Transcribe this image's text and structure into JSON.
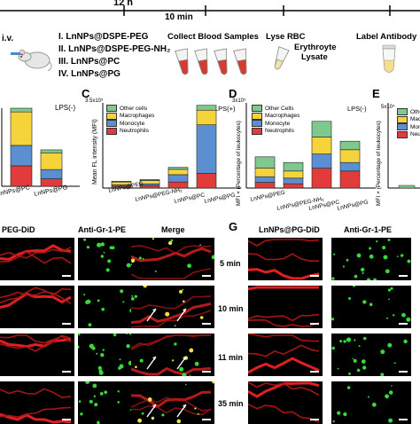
{
  "timeline": {
    "t1": "12 h",
    "t2": "10 min"
  },
  "protocol": {
    "route": "i.v.",
    "groups": [
      "I. LnNPs@DSPE-PEG",
      "II. LnNPs@DSPE-PEG-NH₂",
      "III. LnNPs@PC",
      "IV. LnNPs@PG"
    ],
    "step_collect": "Collect Blood Samples",
    "step_lyse": "Lyse RBC",
    "lysate_label": "Erythroyte\nLysate",
    "step_label": "Label Antibody"
  },
  "colors": {
    "other": "#7fc98f",
    "macrophages": "#f5d33b",
    "monocyte": "#5b8fd1",
    "neutrophils": "#e23b3b"
  },
  "panels": {
    "C": "C",
    "D": "D",
    "E": "E",
    "G": "G"
  },
  "charts": {
    "B": {
      "tag": "LPS(-)",
      "categories": [
        "LnNPs@PC",
        "LnNPs@PG"
      ]
    },
    "C": {
      "tag": "LPS(+)",
      "ylabel": "Mean FL intensity (MFI)",
      "ytick_top": "3.5x10⁵",
      "categories": [
        "LnNPs@PEG",
        "LnNPs@PEG-NH₂",
        "LnNPs@PC",
        "LnNPs@PG"
      ],
      "legend": [
        "Other cells",
        "Macrophages",
        "Monocyte",
        "Neutrophils"
      ]
    },
    "D": {
      "tag": "LPS(-)",
      "ylabel": "MFI × (Percentage of leukocytes)",
      "ytick_top": "3x10⁵",
      "categories": [
        "LnNPs@PEG",
        "LnNPs@PEG-NH₂",
        "LnNPs@PC",
        "LnNPs@PG"
      ],
      "legend": [
        "Other Cells",
        "Macrophages",
        "Monocyte",
        "Neutrophils"
      ]
    },
    "E": {
      "ylabel": "MFI × (Percentage of leukocytes)",
      "ytick_top": "5x10⁴",
      "legend": [
        "Othe",
        "Macr",
        "Mono",
        "Neutr"
      ]
    }
  },
  "chart_data": [
    {
      "type": "bar",
      "panel": "C",
      "categories": [
        "LnNPs@PEG",
        "LnNPs@PEG-NH₂",
        "LnNPs@PC",
        "LnNPs@PG"
      ],
      "series": [
        {
          "name": "Neutrophils",
          "values": [
            7000,
            9000,
            25000,
            60000
          ]
        },
        {
          "name": "Monocyte",
          "values": [
            6000,
            8000,
            30000,
            200000
          ]
        },
        {
          "name": "Macrophages",
          "values": [
            12000,
            14000,
            22000,
            60000
          ]
        },
        {
          "name": "Other cells",
          "values": [
            3000,
            4000,
            8000,
            20000
          ]
        }
      ],
      "ylim": [
        0,
        350000
      ]
    },
    {
      "type": "bar",
      "panel": "D",
      "categories": [
        "LnNPs@PEG",
        "LnNPs@PEG-NH₂",
        "LnNPs@PC",
        "LnNPs@PG"
      ],
      "series": [
        {
          "name": "Neutrophils",
          "values": [
            20000,
            15000,
            70000,
            60000
          ]
        },
        {
          "name": "Monocyte",
          "values": [
            20000,
            20000,
            50000,
            30000
          ]
        },
        {
          "name": "Macrophages",
          "values": [
            30000,
            25000,
            60000,
            45000
          ]
        },
        {
          "name": "Other Cells",
          "values": [
            40000,
            30000,
            55000,
            30000
          ]
        }
      ],
      "ylim": [
        0,
        300000
      ]
    },
    {
      "type": "bar",
      "panel": "B",
      "categories": [
        "LnNPs@PC",
        "LnNPs@PG"
      ],
      "series": [
        {
          "name": "Neutrophils",
          "values": [
            55,
            20
          ]
        },
        {
          "name": "Monocyte",
          "values": [
            55,
            25
          ]
        },
        {
          "name": "Macrophages",
          "values": [
            90,
            45
          ]
        },
        {
          "name": "Other cells",
          "values": [
            10,
            8
          ]
        }
      ],
      "ylim": [
        0,
        210
      ]
    }
  ],
  "microscopy": {
    "left_headers": [
      "PEG-DiD",
      "Anti-Gr-1-PE",
      "Merge"
    ],
    "right_headers": [
      "LnNPs@PG-DiD",
      "Anti-Gr-1-PE"
    ],
    "times": [
      "5 min",
      "10 min",
      "11 min",
      "35 min"
    ]
  }
}
